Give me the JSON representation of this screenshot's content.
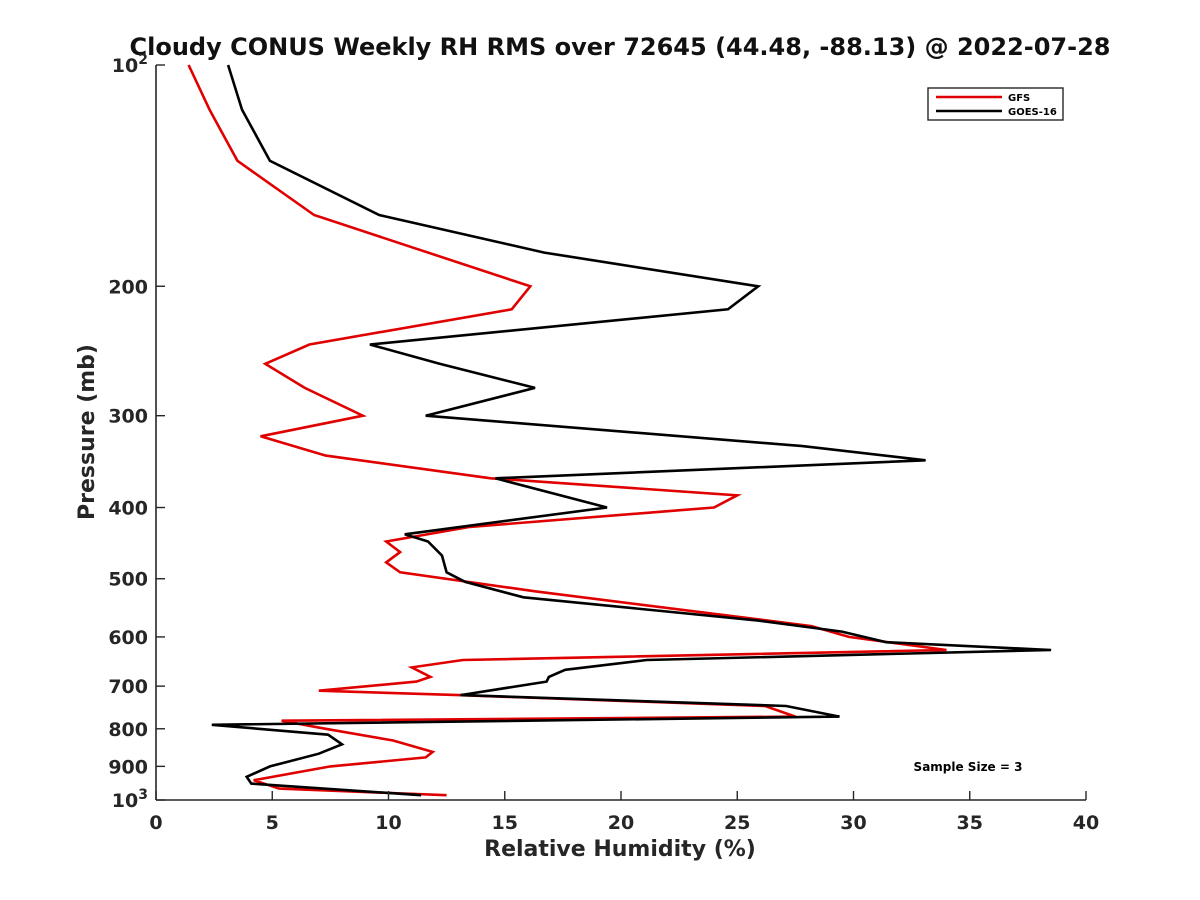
{
  "chart_data": {
    "type": "line",
    "title": "Cloudy CONUS Weekly RH RMS over 72645 (44.48, -88.13) @ 2022-07-28",
    "xlabel": "Relative Humidity (%)",
    "ylabel": "Pressure (mb)",
    "xlim": [
      0,
      40
    ],
    "ylim": [
      100,
      1000
    ],
    "yscale": "log",
    "y_reversed": true,
    "grid": false,
    "legend_position": "top-right",
    "x_ticks": [
      "0",
      "5",
      "10",
      "15",
      "20",
      "25",
      "30",
      "35",
      "40"
    ],
    "y_ticks": [
      {
        "value": 100,
        "base": "10",
        "exp": "2"
      },
      {
        "value": 200,
        "label": "200"
      },
      {
        "value": 300,
        "label": "300"
      },
      {
        "value": 400,
        "label": "400"
      },
      {
        "value": 500,
        "label": "500"
      },
      {
        "value": 600,
        "label": "600"
      },
      {
        "value": 700,
        "label": "700"
      },
      {
        "value": 800,
        "label": "800"
      },
      {
        "value": 900,
        "label": "900"
      },
      {
        "value": 1000,
        "base": "10",
        "exp": "3"
      }
    ],
    "annotation": "Sample Size = 3",
    "series": [
      {
        "name": "GFS",
        "color": "#e00000",
        "points": [
          [
            1.4,
            100
          ],
          [
            2.3,
            115
          ],
          [
            3.5,
            135
          ],
          [
            6.8,
            160
          ],
          [
            16.1,
            200
          ],
          [
            15.3,
            215
          ],
          [
            6.6,
            240
          ],
          [
            4.7,
            255
          ],
          [
            6.4,
            275
          ],
          [
            8.9,
            300
          ],
          [
            4.5,
            320
          ],
          [
            7.3,
            340
          ],
          [
            14.4,
            365
          ],
          [
            25.0,
            385
          ],
          [
            24.0,
            400
          ],
          [
            13.5,
            425
          ],
          [
            9.9,
            445
          ],
          [
            10.5,
            460
          ],
          [
            9.9,
            475
          ],
          [
            10.5,
            490
          ],
          [
            16.3,
            520
          ],
          [
            28.2,
            580
          ],
          [
            29.8,
            600
          ],
          [
            34.0,
            625
          ],
          [
            13.2,
            645
          ],
          [
            11.0,
            660
          ],
          [
            11.8,
            680
          ],
          [
            11.2,
            690
          ],
          [
            7.0,
            710
          ],
          [
            13.0,
            720
          ],
          [
            26.2,
            745
          ],
          [
            27.5,
            770
          ],
          [
            5.4,
            780
          ],
          [
            7.3,
            800
          ],
          [
            10.2,
            830
          ],
          [
            11.9,
            860
          ],
          [
            11.6,
            875
          ],
          [
            7.5,
            900
          ],
          [
            4.2,
            940
          ],
          [
            5.3,
            965
          ],
          [
            12.5,
            985
          ]
        ]
      },
      {
        "name": "GOES-16",
        "color": "#000000",
        "points": [
          [
            3.1,
            100
          ],
          [
            3.7,
            115
          ],
          [
            4.9,
            135
          ],
          [
            9.6,
            160
          ],
          [
            16.7,
            180
          ],
          [
            25.9,
            200
          ],
          [
            24.6,
            215
          ],
          [
            9.2,
            240
          ],
          [
            12.2,
            255
          ],
          [
            16.3,
            275
          ],
          [
            11.6,
            300
          ],
          [
            27.8,
            330
          ],
          [
            33.1,
            345
          ],
          [
            14.6,
            365
          ],
          [
            19.4,
            400
          ],
          [
            10.7,
            435
          ],
          [
            11.7,
            445
          ],
          [
            12.3,
            465
          ],
          [
            12.5,
            490
          ],
          [
            13.3,
            505
          ],
          [
            15.8,
            530
          ],
          [
            25.9,
            570
          ],
          [
            29.5,
            590
          ],
          [
            31.4,
            610
          ],
          [
            38.5,
            625
          ],
          [
            21.1,
            645
          ],
          [
            17.6,
            665
          ],
          [
            16.9,
            680
          ],
          [
            16.8,
            690
          ],
          [
            13.1,
            720
          ],
          [
            27.1,
            745
          ],
          [
            29.4,
            770
          ],
          [
            2.4,
            790
          ],
          [
            7.4,
            815
          ],
          [
            8.0,
            840
          ],
          [
            7.0,
            865
          ],
          [
            4.9,
            900
          ],
          [
            3.9,
            930
          ],
          [
            4.1,
            950
          ],
          [
            11.4,
            985
          ]
        ]
      }
    ]
  }
}
